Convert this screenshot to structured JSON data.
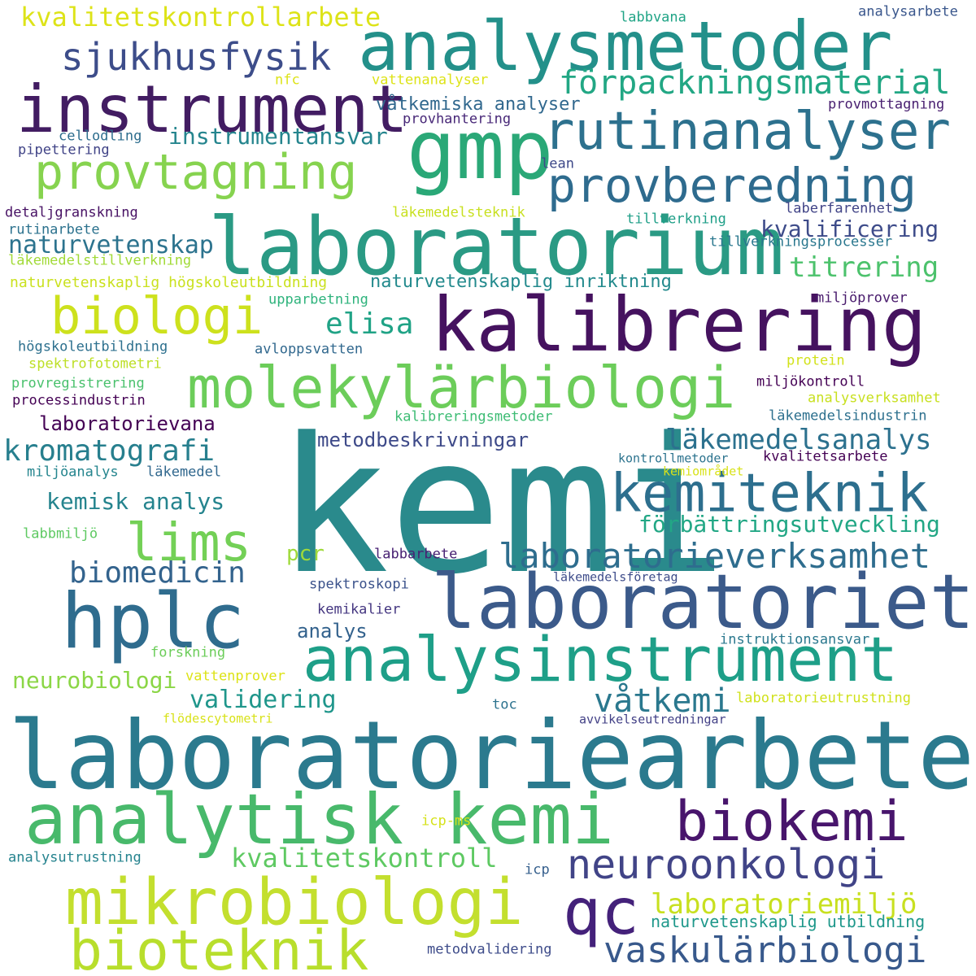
{
  "words": [
    {
      "text": "kemi",
      "color": "#2a8a8c"
    },
    {
      "text": "laboratoriearbete",
      "color": "#2b7a8e"
    },
    {
      "text": "analysmetoder",
      "color": "#23908a"
    },
    {
      "text": "laboratorium",
      "color": "#2a9a84"
    },
    {
      "text": "instrument",
      "color": "#421c62"
    },
    {
      "text": "gmp",
      "color": "#2aa877"
    },
    {
      "text": "kalibrering",
      "color": "#45125f"
    },
    {
      "text": "laboratoriet",
      "color": "#3b5a8a"
    },
    {
      "text": "hplc",
      "color": "#2f6c8e"
    },
    {
      "text": "analysinstrument",
      "color": "#1e9f88"
    },
    {
      "text": "analytisk kemi",
      "color": "#48b96b"
    },
    {
      "text": "kemiteknik",
      "color": "#2d6f8e"
    },
    {
      "text": "rutinanalyser",
      "color": "#2d718e"
    },
    {
      "text": "molekylärbiologi",
      "color": "#6ccd5a"
    },
    {
      "text": "mikrobiologi",
      "color": "#c3df2e"
    },
    {
      "text": "bioteknik",
      "color": "#b8de2c"
    },
    {
      "text": "qc",
      "color": "#44217a"
    },
    {
      "text": "biokemi",
      "color": "#48156c"
    },
    {
      "text": "provtagning",
      "color": "#86d34f"
    },
    {
      "text": "provberedning",
      "color": "#2e6b8e"
    },
    {
      "text": "biologi",
      "color": "#cde11d"
    },
    {
      "text": "neuroonkologi",
      "color": "#414487"
    },
    {
      "text": "vaskulärbiologi",
      "color": "#38598c"
    },
    {
      "text": "lims",
      "color": "#73d056"
    },
    {
      "text": "laboratorieverksamhet",
      "color": "#2e6d8e"
    },
    {
      "text": "sjukhusfysik",
      "color": "#3d4d8a"
    },
    {
      "text": "kvalitetskontrollarbete",
      "color": "#dde318"
    },
    {
      "text": "förpackningsmaterial",
      "color": "#22a784"
    },
    {
      "text": "kromatografi",
      "color": "#277f8e"
    },
    {
      "text": "laboratoriemiljö",
      "color": "#c8e020"
    },
    {
      "text": "biomedicin",
      "color": "#33638d"
    },
    {
      "text": "kvalitetskontroll",
      "color": "#5ec962"
    },
    {
      "text": "läkemedelsanalys",
      "color": "#2c718e"
    },
    {
      "text": "förbättringsutveckling",
      "color": "#22a785"
    },
    {
      "text": "elisa",
      "color": "#20a386"
    },
    {
      "text": "titrering",
      "color": "#4cc26c"
    },
    {
      "text": "kvalificering",
      "color": "#3e4c8a"
    },
    {
      "text": "våtkemi",
      "color": "#2a788e"
    },
    {
      "text": "validering",
      "color": "#1f968b"
    },
    {
      "text": "naturvetenskap",
      "color": "#2c738e"
    },
    {
      "text": "instrumentansvar",
      "color": "#25858e"
    },
    {
      "text": "neurobiologi",
      "color": "#8bd646"
    },
    {
      "text": "kemisk analys",
      "color": "#25848e"
    },
    {
      "text": "naturvetenskaplig utbildning",
      "color": "#1f988b"
    },
    {
      "text": "metodbeskrivningar",
      "color": "#3e4a89"
    },
    {
      "text": "våtkemiska analyser",
      "color": "#31688e"
    },
    {
      "text": "laboratorievana",
      "color": "#440154"
    },
    {
      "text": "naturvetenskaplig inriktning",
      "color": "#238a8d"
    },
    {
      "text": "pcr",
      "color": "#9fda3a"
    },
    {
      "text": "analys",
      "color": "#33628d"
    },
    {
      "text": "naturvetenskaplig högskoleutbildning",
      "color": "#cae11f"
    },
    {
      "text": "labbvana",
      "color": "#20a486"
    },
    {
      "text": "analysarbete",
      "color": "#39568c"
    },
    {
      "text": "provmottagning",
      "color": "#481f70"
    },
    {
      "text": "vattenanalyser",
      "color": "#dde318"
    },
    {
      "text": "nfc",
      "color": "#dde318"
    },
    {
      "text": "provhantering",
      "color": "#482878"
    },
    {
      "text": "cellodling",
      "color": "#2e6e8e"
    },
    {
      "text": "pipettering",
      "color": "#414487"
    },
    {
      "text": "lean",
      "color": "#3e4989"
    },
    {
      "text": "detaljgranskning",
      "color": "#471164"
    },
    {
      "text": "läkemedelsteknik",
      "color": "#c8e020"
    },
    {
      "text": "laberfarenhet",
      "color": "#414487"
    },
    {
      "text": "rutinarbete",
      "color": "#2c728e"
    },
    {
      "text": "tillverkning",
      "color": "#1f9f88"
    },
    {
      "text": "läkemedelstillverkning",
      "color": "#a2da37"
    },
    {
      "text": "tillverkningsprocesser",
      "color": "#2a778e"
    },
    {
      "text": "upparbetning",
      "color": "#2eb37c"
    },
    {
      "text": "miljöprover",
      "color": "#481a6c"
    },
    {
      "text": "högskoleutbildning",
      "color": "#2d708e"
    },
    {
      "text": "avloppsvatten",
      "color": "#31688e"
    },
    {
      "text": "spektrofotometri",
      "color": "#bddf26"
    },
    {
      "text": "protein",
      "color": "#d2e21b"
    },
    {
      "text": "provregistrering",
      "color": "#4ac16d"
    },
    {
      "text": "miljökontroll",
      "color": "#440154"
    },
    {
      "text": "processindustrin",
      "color": "#440154"
    },
    {
      "text": "analysverksamhet",
      "color": "#c8e020"
    },
    {
      "text": "kalibreringsmetoder",
      "color": "#3dbc74"
    },
    {
      "text": "läkemedelsindustrin",
      "color": "#2d708e"
    },
    {
      "text": "kontrollmetoder",
      "color": "#2c738e"
    },
    {
      "text": "kvalitetsarbete",
      "color": "#440154"
    },
    {
      "text": "kemiområdet",
      "color": "#d8e219"
    },
    {
      "text": "miljöanalys",
      "color": "#25858e"
    },
    {
      "text": "läkemedel",
      "color": "#31688e"
    },
    {
      "text": "labbmiljö",
      "color": "#5ec962"
    },
    {
      "text": "labbarbete",
      "color": "#482173"
    },
    {
      "text": "läkemedelsföretag",
      "color": "#3e4c8a"
    },
    {
      "text": "spektroskopi",
      "color": "#3b528b"
    },
    {
      "text": "kemikalier",
      "color": "#453781"
    },
    {
      "text": "instruktionsansvar",
      "color": "#2a788e"
    },
    {
      "text": "forskning",
      "color": "#6ccd5a"
    },
    {
      "text": "vattenprover",
      "color": "#dde318"
    },
    {
      "text": "toc",
      "color": "#2c728e"
    },
    {
      "text": "laboratorieutrustning",
      "color": "#d0e11c"
    },
    {
      "text": "flödescytometri",
      "color": "#d8e219"
    },
    {
      "text": "avvikelseutredningar",
      "color": "#424086"
    },
    {
      "text": "icp-ms",
      "color": "#d5e21a"
    },
    {
      "text": "analysutrustning",
      "color": "#25838e"
    },
    {
      "text": "icp",
      "color": "#355f8d"
    },
    {
      "text": "metodvalidering",
      "color": "#3e4c8a"
    }
  ]
}
